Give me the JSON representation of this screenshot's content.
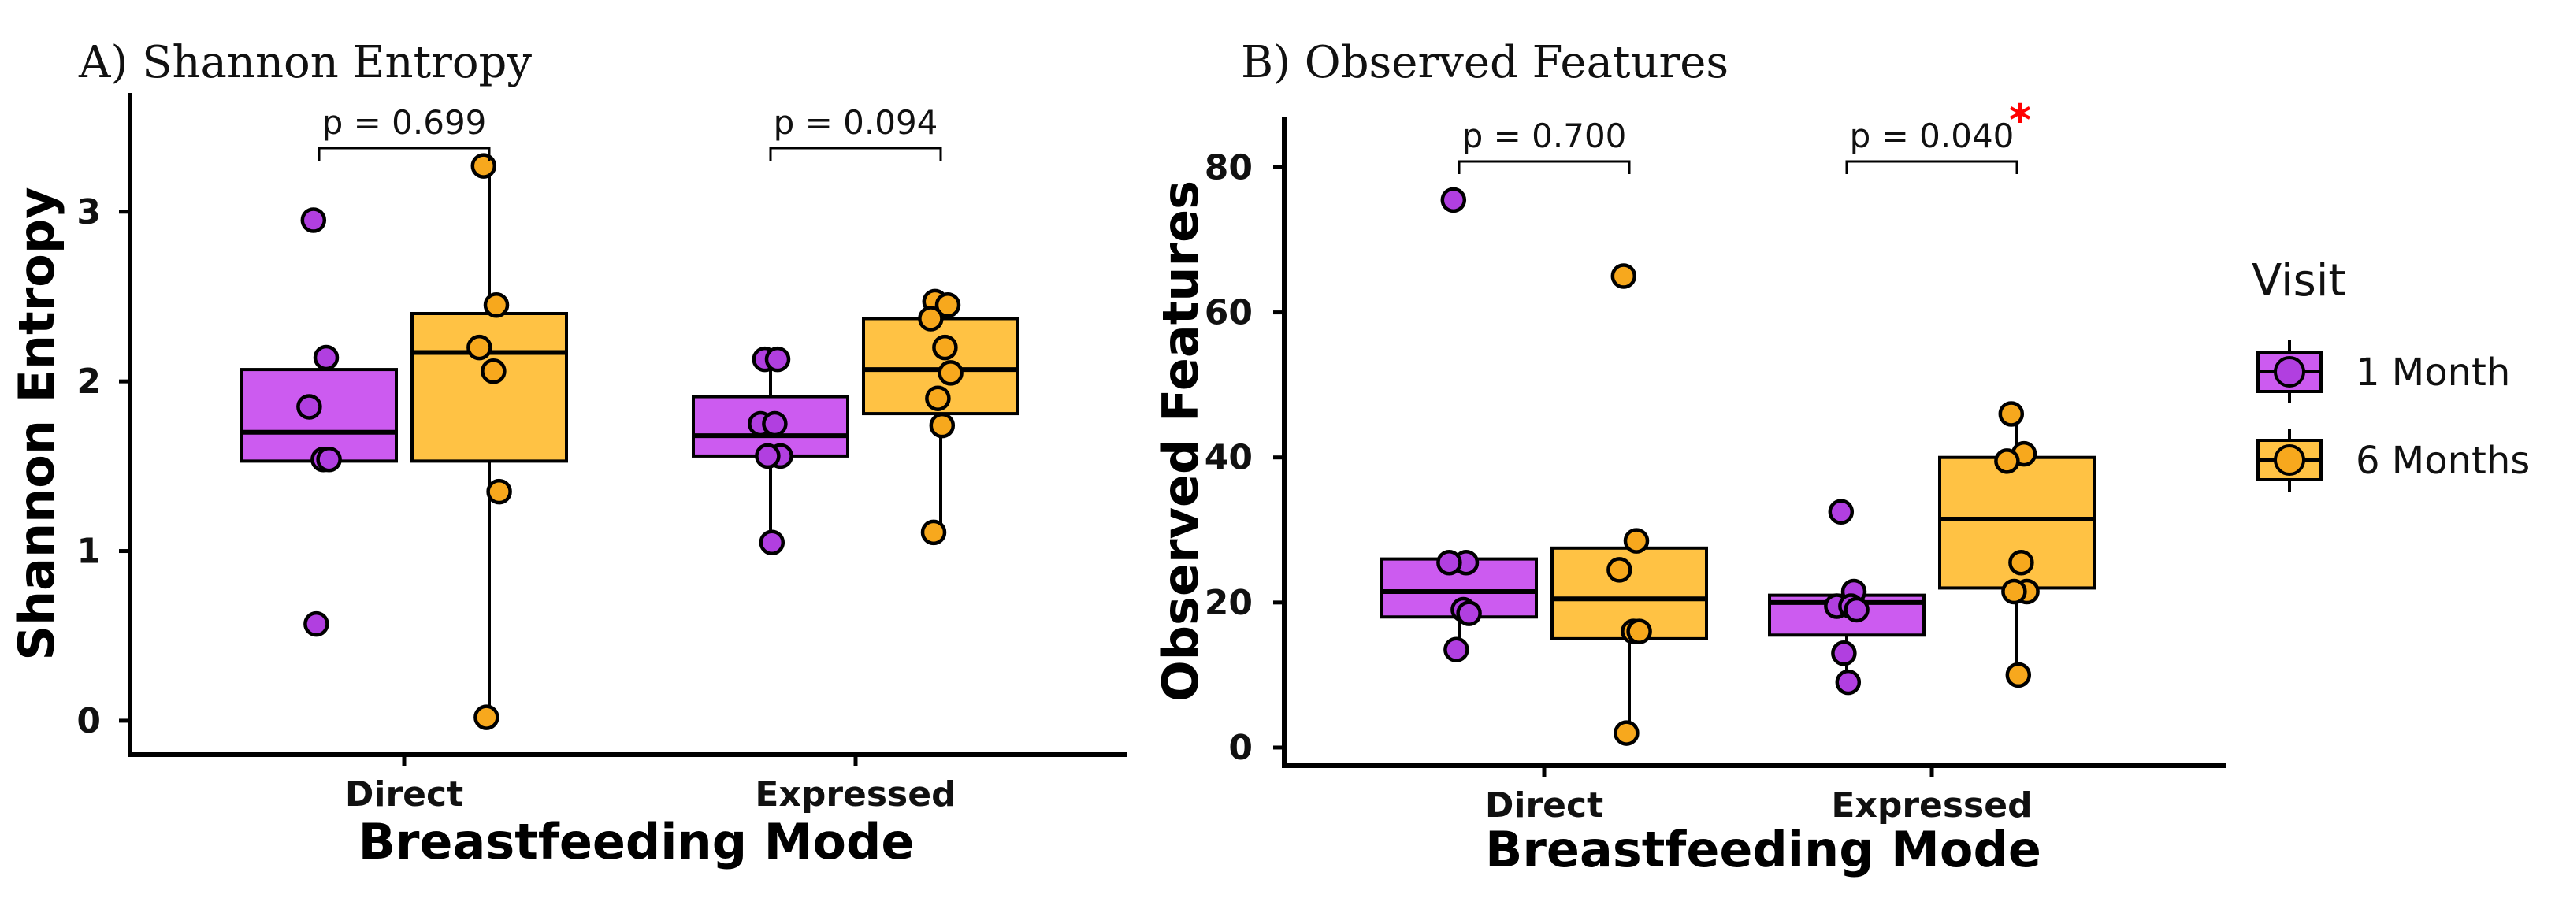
{
  "colors": {
    "month1": "#cc5bf0",
    "month6": "#ffc244",
    "month1_point": "#b13fe0",
    "month6_point": "#f7a81d",
    "star": "#ff0000"
  },
  "legend": {
    "title": "Visit",
    "items": [
      {
        "label": "1 Month",
        "color_key": "month1"
      },
      {
        "label": "6 Months",
        "color_key": "month6"
      }
    ]
  },
  "chart_data": [
    {
      "type": "box",
      "title": "A) Shannon Entropy",
      "xlabel": "Breastfeeding Mode",
      "ylabel": "Shannon Entropy",
      "ylim": [
        -0.2,
        3.7
      ],
      "yticks": [
        0,
        1,
        2,
        3
      ],
      "categories": [
        "Direct",
        "Expressed"
      ],
      "series": [
        "1 Month",
        "6 Months"
      ],
      "boxes": [
        {
          "category": "Direct",
          "series": "1 Month",
          "q1": 1.53,
          "median": 1.7,
          "q3": 2.07,
          "whisker_low": 1.53,
          "whisker_high": 2.07,
          "points": [
            2.95,
            2.14,
            1.85,
            1.54,
            1.54,
            0.57
          ]
        },
        {
          "category": "Direct",
          "series": "6 Months",
          "q1": 1.53,
          "median": 2.17,
          "q3": 2.4,
          "whisker_low": 0.02,
          "whisker_high": 3.27,
          "points": [
            3.27,
            2.45,
            2.2,
            2.06,
            1.35,
            0.02
          ]
        },
        {
          "category": "Expressed",
          "series": "1 Month",
          "q1": 1.56,
          "median": 1.68,
          "q3": 1.91,
          "whisker_low": 1.05,
          "whisker_high": 2.13,
          "points": [
            2.13,
            2.13,
            1.75,
            1.75,
            1.56,
            1.56,
            1.05
          ]
        },
        {
          "category": "Expressed",
          "series": "6 Months",
          "q1": 1.81,
          "median": 2.07,
          "q3": 2.37,
          "whisker_low": 1.11,
          "whisker_high": 2.47,
          "points": [
            2.47,
            2.45,
            2.37,
            2.2,
            2.05,
            1.9,
            1.74,
            1.11
          ]
        }
      ],
      "comparisons": [
        {
          "category": "Direct",
          "label": "p = 0.699",
          "significant": false
        },
        {
          "category": "Expressed",
          "label": "p = 0.094",
          "significant": false
        }
      ]
    },
    {
      "type": "box",
      "title": "B) Observed Features",
      "xlabel": "Breastfeeding Mode",
      "ylabel": "Observed Features",
      "ylim": [
        -2.5,
        87
      ],
      "yticks": [
        0,
        20,
        40,
        60,
        80
      ],
      "categories": [
        "Direct",
        "Expressed"
      ],
      "series": [
        "1 Month",
        "6 Months"
      ],
      "boxes": [
        {
          "category": "Direct",
          "series": "1 Month",
          "q1": 18,
          "median": 21.5,
          "q3": 26,
          "whisker_low": 13.5,
          "whisker_high": 26,
          "points": [
            75.5,
            25.5,
            25.5,
            19,
            18.5,
            13.5
          ]
        },
        {
          "category": "Direct",
          "series": "6 Months",
          "q1": 15,
          "median": 20.5,
          "q3": 27.5,
          "whisker_low": 2,
          "whisker_high": 28.5,
          "points": [
            65,
            28.5,
            24.5,
            16,
            16,
            2
          ]
        },
        {
          "category": "Expressed",
          "series": "1 Month",
          "q1": 15.5,
          "median": 20,
          "q3": 21,
          "whisker_low": 9,
          "whisker_high": 21.5,
          "points": [
            32.5,
            21.5,
            19.5,
            19.5,
            19,
            13,
            9
          ]
        },
        {
          "category": "Expressed",
          "series": "6 Months",
          "q1": 22,
          "median": 31.5,
          "q3": 40,
          "whisker_low": 10,
          "whisker_high": 46,
          "points": [
            46,
            40.5,
            39.5,
            25.5,
            21.5,
            21.5,
            10
          ]
        }
      ],
      "comparisons": [
        {
          "category": "Direct",
          "label": "p = 0.700",
          "significant": false
        },
        {
          "category": "Expressed",
          "label": "p = 0.040",
          "significant": true,
          "marker": "*"
        }
      ]
    }
  ]
}
